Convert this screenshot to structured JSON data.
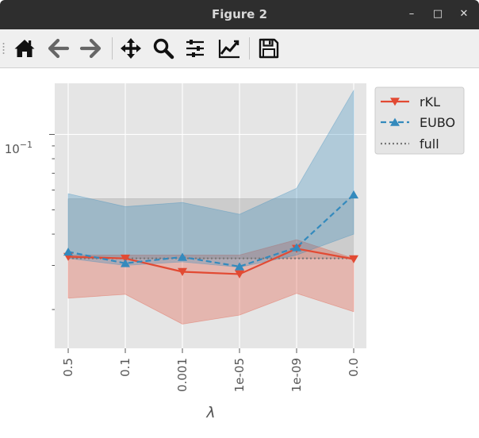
{
  "window": {
    "title": "Figure 2",
    "minimize": "–",
    "maximize": "□",
    "close": "✕"
  },
  "toolbar": {
    "icons": [
      "home-icon",
      "back-arrow-icon",
      "forward-arrow-icon",
      "pan-icon",
      "zoom-icon",
      "configure-subplots-icon",
      "edit-axes-icon",
      "save-icon"
    ]
  },
  "chart_data": {
    "type": "line",
    "categories": [
      "0.5",
      "0.1",
      "0.001",
      "1e-05",
      "1e-09",
      "0.0"
    ],
    "xlabel": "λ",
    "ylabel": "",
    "yscale": "log",
    "ylim": [
      0.014,
      0.16
    ],
    "y_major_tick": {
      "value": 0.1,
      "label": "10^-1",
      "base": "10",
      "exponent": "−1"
    },
    "y_minor_ticks": [
      0.02,
      0.03,
      0.04,
      0.05,
      0.06,
      0.07,
      0.08,
      0.09
    ],
    "grid": true,
    "style": "ggplot",
    "legend_position": "outside-upper-right",
    "series": [
      {
        "name": "rKL",
        "color": "#E24A33",
        "marker": "triangle-down",
        "linestyle": "solid",
        "values": [
          0.0325,
          0.032,
          0.0283,
          0.0277,
          0.035,
          0.0318
        ],
        "band_low": [
          0.0222,
          0.023,
          0.0175,
          0.019,
          0.0232,
          0.0196
        ],
        "band_high": [
          0.033,
          0.033,
          0.033,
          0.033,
          0.038,
          0.032
        ]
      },
      {
        "name": "EUBO",
        "color": "#348ABD",
        "marker": "triangle-up",
        "linestyle": "dashed",
        "values": [
          0.034,
          0.0306,
          0.0324,
          0.0297,
          0.0354,
          0.0575
        ],
        "band_low": [
          0.032,
          0.03,
          0.031,
          0.0295,
          0.033,
          0.04
        ],
        "band_high": [
          0.058,
          0.0515,
          0.0535,
          0.048,
          0.061,
          0.15
        ]
      },
      {
        "name": "full",
        "color": "#777777",
        "marker": "none",
        "linestyle": "dotted",
        "values": [
          0.032,
          0.032,
          0.032,
          0.032,
          0.032,
          0.032
        ],
        "band_low": [
          0.032,
          0.032,
          0.032,
          0.032,
          0.032,
          0.032
        ],
        "band_high": [
          0.0553,
          0.0553,
          0.0553,
          0.0553,
          0.0553,
          0.0553
        ]
      }
    ]
  }
}
